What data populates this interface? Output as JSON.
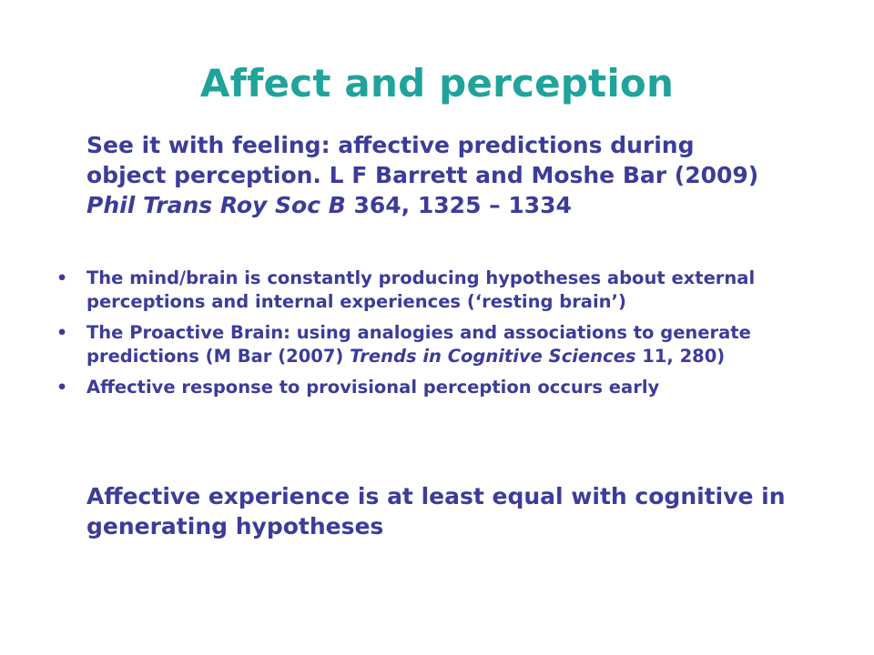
{
  "slide": {
    "title": "Affect and perception",
    "reference": {
      "text_before": "See it with feeling: affective predictions during object perception.  L F Barrett and Moshe Bar (2009) ",
      "journal": "Phil Trans Roy Soc B",
      "text_after": "  364, 1325 – 1334"
    },
    "bullets": [
      {
        "marker": "•",
        "text": "The mind/brain is constantly producing hypotheses about external perceptions and internal experiences (‘resting brain’)"
      },
      {
        "marker": "•",
        "text_before": "The Proactive Brain: using analogies and associations to generate predictions (M Bar (2007) ",
        "journal": "Trends in Cognitive Sciences",
        "text_after": "  11, 280)"
      },
      {
        "marker": "•",
        "text": "Affective response to provisional perception occurs early"
      }
    ],
    "conclusion": "Affective experience is at least equal with cognitive in generating hypotheses",
    "colors": {
      "title": "#20a39a",
      "body": "#3c3c9a",
      "background": "#ffffff"
    }
  }
}
